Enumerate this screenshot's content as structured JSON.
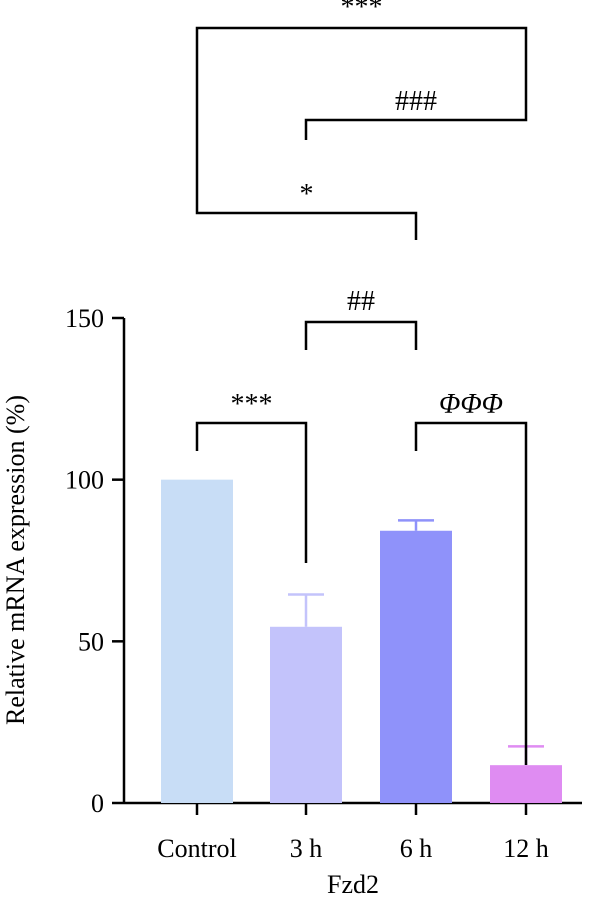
{
  "chart_data": {
    "type": "bar",
    "categories": [
      "Control",
      "3 h",
      "6 h",
      "12 h"
    ],
    "values": [
      100,
      54.5,
      84.2,
      11.7
    ],
    "errors": [
      0,
      10,
      3.2,
      5.8
    ],
    "colors": [
      "#c8ddf6",
      "#c3c3fb",
      "#8f92fa",
      "#df8cf2"
    ],
    "xlabel": "Fzd2",
    "ylabel": "Relative mRNA expression (%)",
    "ylim": [
      0,
      150
    ],
    "yticks": [
      "0",
      "50",
      "100",
      "150"
    ],
    "grid": false,
    "significance": [
      {
        "from": "Control",
        "to": "3 h",
        "label": "***"
      },
      {
        "from": "6 h",
        "to": "12 h",
        "label": "ΦΦΦ"
      },
      {
        "from": "3 h",
        "to": "6 h",
        "label": "##"
      },
      {
        "from": "Control",
        "to": "6 h",
        "label": "*"
      },
      {
        "from": "3 h",
        "to": "12 h",
        "label": "###"
      },
      {
        "from": "Control",
        "to": "12 h",
        "label": "***"
      }
    ]
  }
}
